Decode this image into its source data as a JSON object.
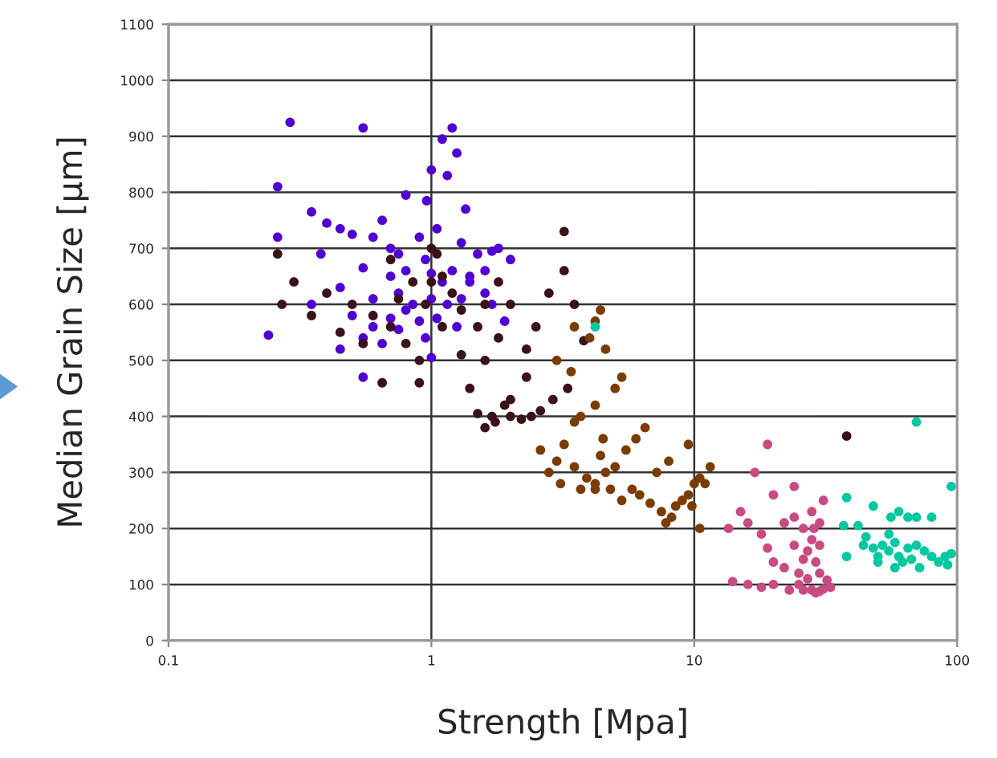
{
  "chart_data": {
    "type": "scatter",
    "xlabel": "Strength [Mpa]",
    "ylabel": "Median Grain Size [µm]",
    "log": "x",
    "xlim": [
      0.1,
      100
    ],
    "xticks": [
      0.1,
      1,
      10,
      100
    ],
    "ylim": [
      0,
      1100
    ],
    "yticks": [
      0,
      100,
      200,
      300,
      400,
      500,
      600,
      700,
      800,
      900,
      1000,
      1100
    ],
    "grid": true,
    "marker": "circle",
    "series": [
      {
        "color": "#5000d0",
        "x": [
          0.29,
          0.55,
          1.2,
          1.1,
          1.25,
          0.26,
          1.0,
          1.15,
          0.8,
          0.96,
          1.35,
          0.26,
          0.4,
          0.35,
          0.45,
          0.5,
          0.6,
          0.7,
          0.9,
          1.05,
          1.3,
          1.5,
          1.7,
          0.55,
          0.7,
          0.8,
          0.95,
          1.0,
          1.1,
          1.2,
          1.4,
          1.6,
          0.45,
          0.6,
          0.75,
          0.85,
          1.0,
          1.15,
          1.3,
          1.6,
          0.5,
          0.6,
          0.7,
          0.8,
          0.9,
          1.05,
          1.25,
          0.55,
          0.65,
          0.75,
          0.45,
          0.24,
          0.55,
          1.0,
          0.95,
          1.4,
          1.8,
          2.0,
          0.35,
          0.38,
          1.9,
          1.7,
          0.65,
          0.75
        ],
        "values": [
          925,
          915,
          915,
          895,
          870,
          810,
          840,
          830,
          795,
          785,
          770,
          720,
          745,
          765,
          735,
          725,
          720,
          700,
          720,
          735,
          710,
          690,
          695,
          665,
          650,
          660,
          680,
          655,
          640,
          660,
          650,
          660,
          630,
          610,
          620,
          600,
          610,
          600,
          610,
          620,
          580,
          560,
          575,
          590,
          570,
          575,
          560,
          540,
          530,
          555,
          520,
          545,
          470,
          505,
          540,
          640,
          700,
          680,
          600,
          690,
          570,
          600,
          750,
          690
        ]
      },
      {
        "color": "#3a1218",
        "x": [
          0.26,
          0.3,
          0.27,
          0.35,
          0.4,
          0.5,
          0.45,
          0.55,
          0.6,
          0.7,
          0.8,
          0.9,
          0.95,
          0.85,
          0.75,
          1.0,
          1.05,
          1.1,
          1.2,
          1.3,
          1.5,
          1.6,
          1.8,
          2.0,
          1.0,
          0.9,
          1.4,
          1.6,
          2.0,
          1.8,
          2.3,
          2.5,
          2.8,
          3.2,
          3.5,
          3.2,
          1.3,
          1.5,
          1.6,
          1.7,
          1.75,
          1.9,
          2.0,
          2.2,
          2.4,
          2.6,
          2.9,
          2.3,
          3.3,
          3.8,
          0.65,
          38,
          0.7,
          1.1
        ],
        "values": [
          690,
          640,
          600,
          580,
          620,
          600,
          550,
          530,
          580,
          560,
          530,
          500,
          600,
          640,
          610,
          640,
          690,
          650,
          620,
          590,
          560,
          600,
          640,
          600,
          700,
          460,
          450,
          500,
          430,
          540,
          520,
          560,
          620,
          660,
          600,
          730,
          510,
          405,
          380,
          400,
          390,
          420,
          400,
          395,
          400,
          410,
          430,
          470,
          450,
          535,
          460,
          365,
          680,
          560
        ]
      },
      {
        "color": "#7a3c00",
        "x": [
          3.5,
          3.0,
          3.4,
          4.0,
          4.4,
          4.6,
          5.0,
          5.3,
          4.2,
          3.7,
          3.5,
          4.5,
          3.2,
          3.0,
          2.8,
          3.1,
          3.5,
          3.9,
          4.2,
          4.6,
          5.0,
          5.5,
          6.0,
          6.5,
          4.4,
          3.7,
          4.2,
          4.8,
          5.3,
          5.8,
          6.2,
          6.8,
          7.5,
          7.8,
          8.2,
          8.5,
          9.0,
          9.5,
          10.0,
          10.5,
          11,
          10.5,
          9.8,
          7.2,
          8.0,
          9.5,
          11.5,
          2.6,
          4.2
        ],
        "values": [
          560,
          500,
          480,
          540,
          590,
          520,
          450,
          470,
          420,
          400,
          390,
          360,
          350,
          320,
          300,
          280,
          310,
          290,
          280,
          300,
          310,
          340,
          360,
          380,
          330,
          270,
          270,
          270,
          250,
          270,
          260,
          245,
          230,
          210,
          220,
          240,
          250,
          260,
          280,
          290,
          280,
          200,
          240,
          300,
          320,
          350,
          310,
          340,
          570
        ]
      },
      {
        "color": "#c84c84",
        "x": [
          19,
          17,
          20,
          15,
          13.5,
          16,
          18,
          19,
          22,
          24,
          26,
          24,
          20,
          22,
          25,
          26,
          27,
          28,
          28.5,
          30,
          29,
          30,
          27,
          25,
          26,
          28,
          29,
          30,
          31,
          32,
          33,
          16,
          18,
          20,
          23,
          14,
          28,
          30,
          31,
          24
        ],
        "values": [
          350,
          300,
          260,
          230,
          200,
          210,
          190,
          165,
          210,
          220,
          200,
          170,
          140,
          130,
          120,
          145,
          160,
          180,
          200,
          170,
          140,
          120,
          110,
          100,
          90,
          90,
          85,
          88,
          92,
          108,
          95,
          100,
          95,
          100,
          90,
          105,
          230,
          210,
          250,
          275
        ]
      },
      {
        "color": "#00c8a0",
        "x": [
          4.2,
          70,
          95,
          38,
          48,
          60,
          65,
          56,
          70,
          42,
          55,
          80,
          37,
          45,
          38,
          48,
          50,
          55,
          60,
          65,
          70,
          50,
          58,
          62,
          67,
          72,
          80,
          85,
          90,
          95,
          92,
          75,
          44,
          52,
          58
        ],
        "values": [
          560,
          390,
          275,
          255,
          240,
          230,
          220,
          220,
          220,
          205,
          190,
          220,
          205,
          185,
          150,
          165,
          150,
          160,
          150,
          165,
          170,
          140,
          130,
          140,
          145,
          130,
          150,
          140,
          150,
          155,
          135,
          160,
          170,
          170,
          175
        ]
      }
    ]
  }
}
